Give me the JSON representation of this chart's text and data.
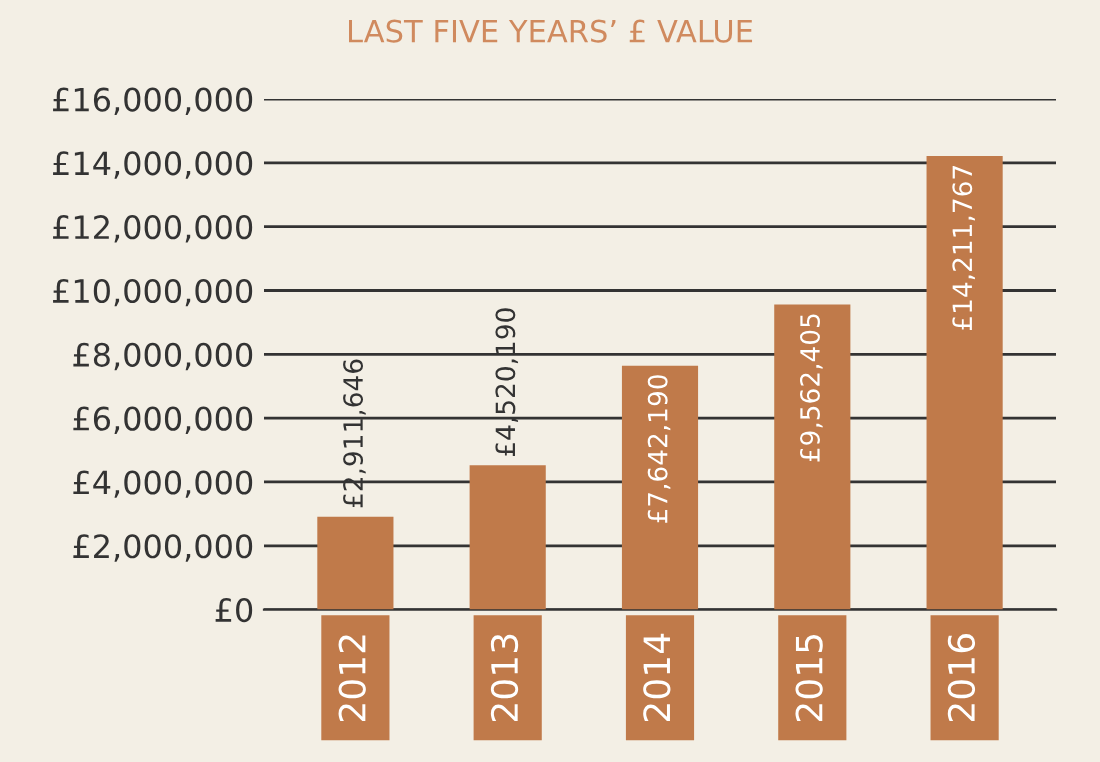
{
  "chart_data": {
    "type": "bar",
    "title": "LAST FIVE YEARS’ £ VALUE",
    "categories": [
      "2012",
      "2013",
      "2014",
      "2015",
      "2016"
    ],
    "values": [
      2911646,
      4520190,
      7642190,
      9562405,
      14211767
    ],
    "value_labels": [
      "£2,911,646",
      "£4,520,190",
      "£7,642,190",
      "£9,562,405",
      "£14,211,767"
    ],
    "color": "#c07a4a",
    "ylim": [
      0,
      16000000
    ],
    "yticks": [
      {
        "value": 0,
        "label": "£0"
      },
      {
        "value": 2000000,
        "label": "£2,000,000"
      },
      {
        "value": 4000000,
        "label": "£4,000,000"
      },
      {
        "value": 6000000,
        "label": "£6,000,000"
      },
      {
        "value": 8000000,
        "label": "£8,000,000"
      },
      {
        "value": 10000000,
        "label": "£10,000,000"
      },
      {
        "value": 12000000,
        "label": "£12,000,000"
      },
      {
        "value": 14000000,
        "label": "£14,000,000"
      },
      {
        "value": 16000000,
        "label": "£16,000,000"
      }
    ],
    "grid": "y"
  }
}
